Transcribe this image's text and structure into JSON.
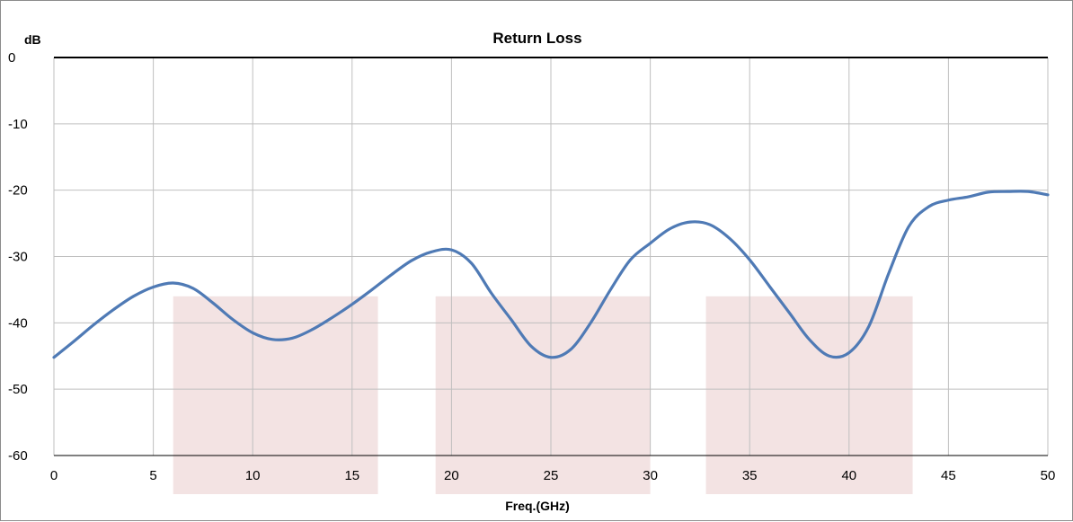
{
  "chart_data": {
    "type": "line",
    "title": "Return Loss",
    "ylabel": "dB",
    "xlabel": "Freq.(GHz)",
    "xlim": [
      0,
      50
    ],
    "ylim": [
      -60,
      0
    ],
    "x_ticks": [
      "0",
      "5",
      "10",
      "15",
      "20",
      "25",
      "30",
      "35",
      "40",
      "45",
      "50"
    ],
    "y_ticks": [
      "0",
      "-10",
      "-20",
      "-30",
      "-40",
      "-50",
      "-60"
    ],
    "grid": true,
    "colors": {
      "line": "#4f7ab5",
      "band": "#f3e3e3",
      "grid": "#bfbfbf",
      "axis": "#000000"
    },
    "shaded_bands": [
      {
        "x": [
          6,
          16.3
        ],
        "y": [
          -36,
          -60
        ]
      },
      {
        "x": [
          19.2,
          30
        ],
        "y": [
          -36,
          -60
        ]
      },
      {
        "x": [
          32.8,
          43.2
        ],
        "y": [
          -36,
          -60
        ]
      }
    ],
    "series": [
      {
        "x": [
          0,
          1,
          2,
          3,
          4,
          5,
          6,
          7,
          8,
          9,
          10,
          11,
          12,
          13,
          14,
          15,
          16,
          17,
          18,
          19,
          20,
          21,
          22,
          23,
          24,
          25,
          26,
          27,
          28,
          29,
          30,
          31,
          32,
          33,
          34,
          35,
          36,
          37,
          38,
          39,
          40,
          41,
          42,
          43,
          44,
          45,
          46,
          47,
          48,
          49,
          50
        ],
        "y": [
          -45.2,
          -42.8,
          -40.3,
          -38.0,
          -36.0,
          -34.6,
          -34.0,
          -34.8,
          -37.0,
          -39.5,
          -41.5,
          -42.5,
          -42.3,
          -41.0,
          -39.2,
          -37.2,
          -35.0,
          -32.7,
          -30.6,
          -29.3,
          -29.0,
          -31.0,
          -35.5,
          -39.5,
          -43.5,
          -45.2,
          -44.0,
          -40.0,
          -35.0,
          -30.5,
          -28.0,
          -25.8,
          -24.8,
          -25.2,
          -27.3,
          -30.5,
          -34.5,
          -38.5,
          -42.5,
          -45.0,
          -44.5,
          -40.5,
          -32.5,
          -25.5,
          -22.5,
          -21.5,
          -21.0,
          -20.3,
          -20.2,
          -20.2,
          -20.7
        ]
      }
    ]
  }
}
